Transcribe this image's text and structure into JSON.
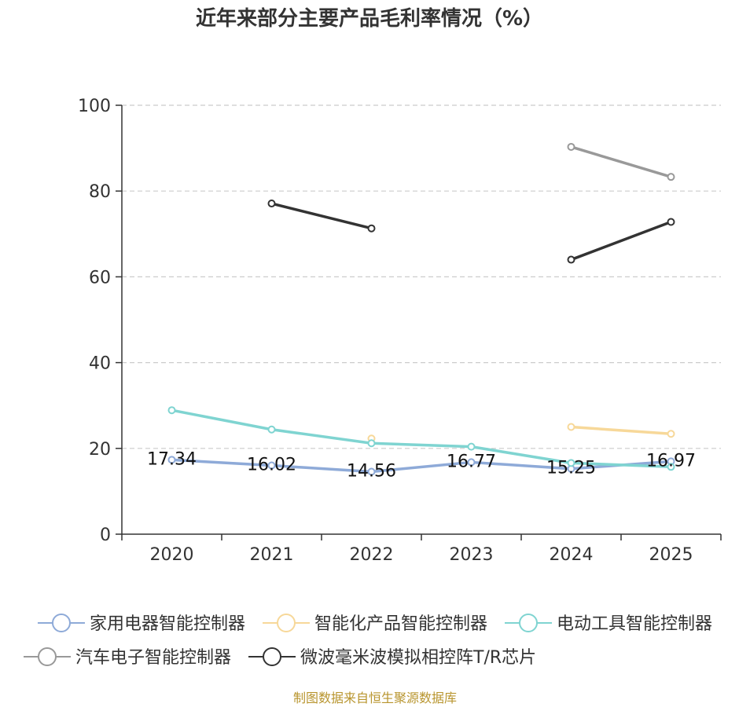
{
  "chart_data": {
    "type": "line",
    "title": "近年来部分主要产品毛利率情况（%）",
    "categories": [
      "2020",
      "2021",
      "2022",
      "2023",
      "2024",
      "2025"
    ],
    "ylim": [
      0,
      100
    ],
    "yticks": [
      0,
      20,
      40,
      60,
      80,
      100
    ],
    "grid": true,
    "legend_position": "bottom",
    "series": [
      {
        "name": "家用电器智能控制器",
        "color": "#8eaad8",
        "values": [
          17.34,
          16.02,
          14.56,
          16.77,
          15.25,
          16.97
        ],
        "labels": [
          "17.34",
          "16.02",
          "14.56",
          "16.77",
          "15.25",
          "16.97"
        ]
      },
      {
        "name": "智能化产品智能控制器",
        "color": "#f7d899",
        "values": [
          null,
          null,
          22.3,
          null,
          25.0,
          23.4
        ]
      },
      {
        "name": "电动工具智能控制器",
        "color": "#7fd4d1",
        "values": [
          28.9,
          24.4,
          21.2,
          20.4,
          16.6,
          15.7
        ]
      },
      {
        "name": "汽车电子智能控制器",
        "color": "#999999",
        "values": [
          null,
          null,
          null,
          null,
          90.3,
          83.3
        ]
      },
      {
        "name": "微波毫米波模拟相控阵T/R芯片",
        "color": "#333333",
        "values": [
          null,
          77.1,
          71.3,
          null,
          64.0,
          72.8
        ]
      }
    ],
    "source": "制图数据来自恒生聚源数据库"
  }
}
